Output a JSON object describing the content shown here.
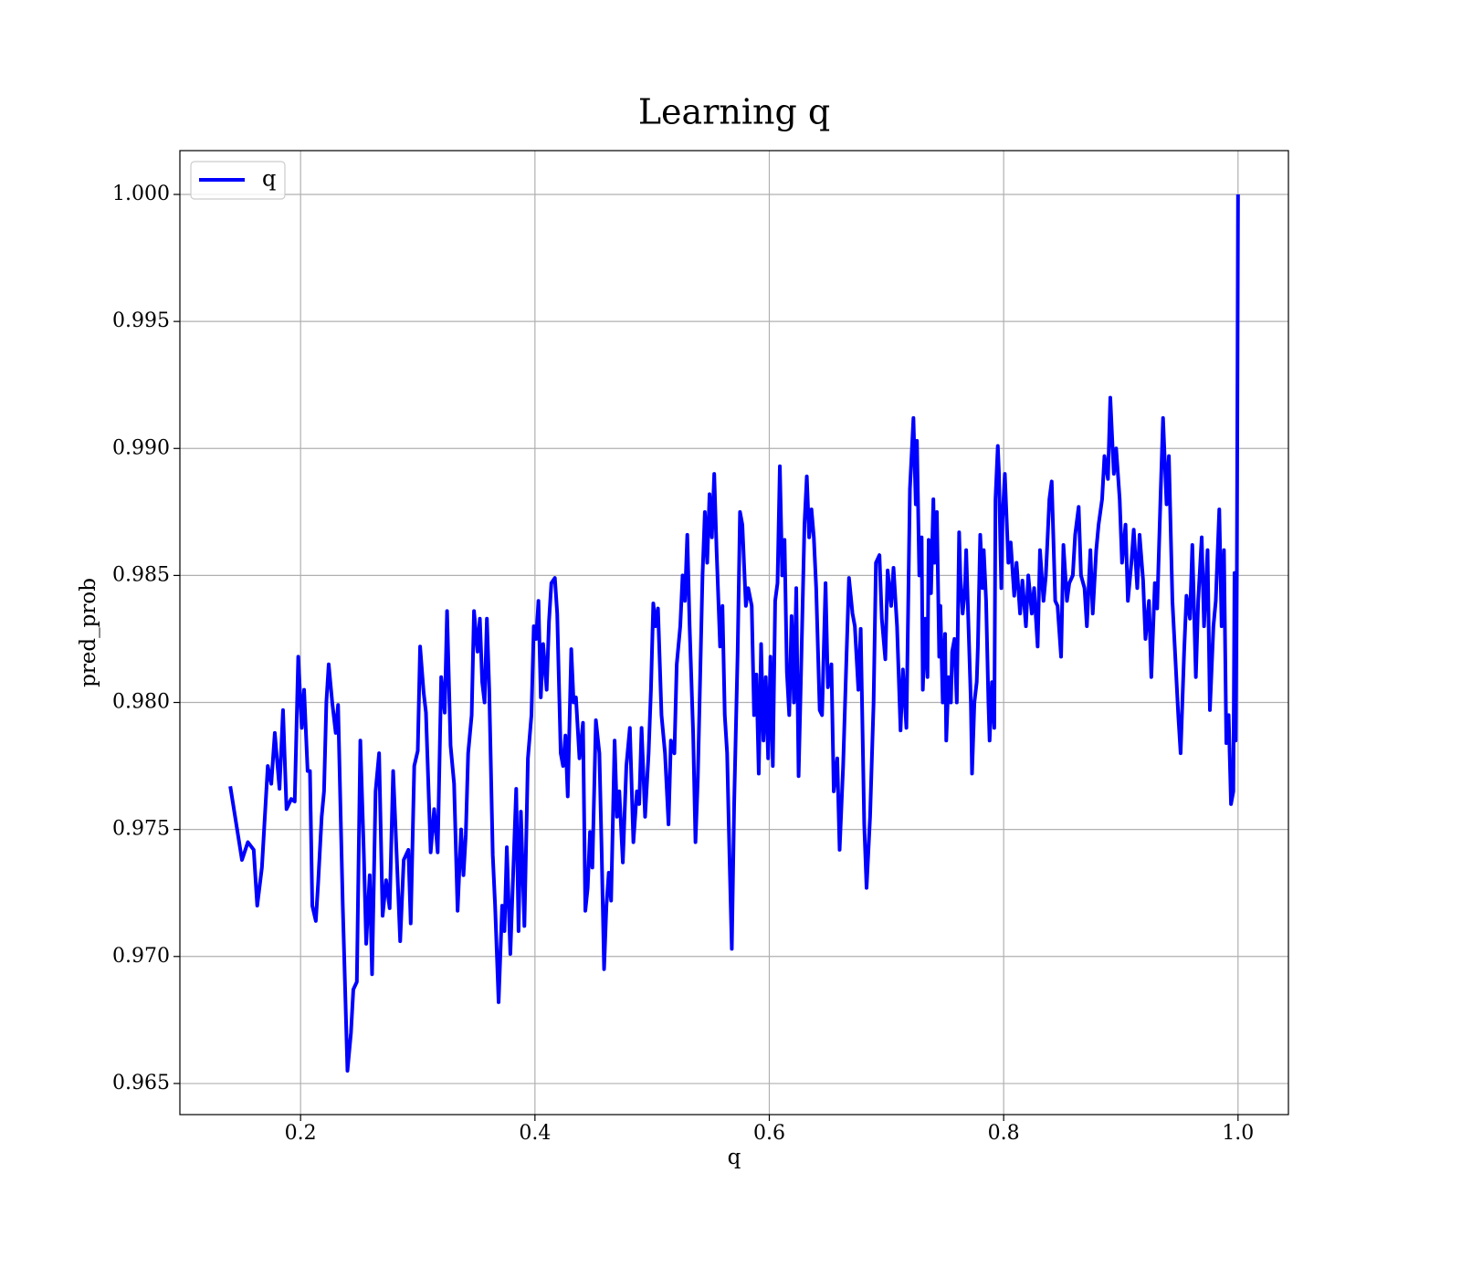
{
  "chart_data": {
    "type": "line",
    "title": "Learning q",
    "xlabel": "q",
    "ylabel": "pred_prob",
    "x": [
      0.14,
      0.15,
      0.155,
      0.16,
      0.163,
      0.167,
      0.172,
      0.175,
      0.178,
      0.182,
      0.185,
      0.188,
      0.192,
      0.195,
      0.198,
      0.201,
      0.203,
      0.206,
      0.208,
      0.21,
      0.213,
      0.215,
      0.218,
      0.22,
      0.222,
      0.224,
      0.227,
      0.23,
      0.232,
      0.236,
      0.24,
      0.243,
      0.245,
      0.248,
      0.251,
      0.254,
      0.256,
      0.259,
      0.261,
      0.264,
      0.267,
      0.27,
      0.273,
      0.276,
      0.279,
      0.282,
      0.285,
      0.288,
      0.292,
      0.294,
      0.297,
      0.3,
      0.302,
      0.305,
      0.307,
      0.311,
      0.314,
      0.317,
      0.32,
      0.323,
      0.325,
      0.328,
      0.331,
      0.334,
      0.337,
      0.339,
      0.341,
      0.343,
      0.346,
      0.348,
      0.351,
      0.353,
      0.355,
      0.357,
      0.359,
      0.361,
      0.364,
      0.366,
      0.369,
      0.372,
      0.374,
      0.376,
      0.379,
      0.382,
      0.384,
      0.386,
      0.388,
      0.391,
      0.394,
      0.397,
      0.399,
      0.401,
      0.403,
      0.405,
      0.407,
      0.41,
      0.412,
      0.414,
      0.417,
      0.419,
      0.422,
      0.424,
      0.426,
      0.428,
      0.431,
      0.433,
      0.435,
      0.438,
      0.441,
      0.443,
      0.445,
      0.447,
      0.449,
      0.452,
      0.455,
      0.457,
      0.459,
      0.461,
      0.463,
      0.465,
      0.468,
      0.47,
      0.472,
      0.475,
      0.478,
      0.481,
      0.484,
      0.487,
      0.489,
      0.491,
      0.494,
      0.497,
      0.499,
      0.501,
      0.503,
      0.505,
      0.508,
      0.511,
      0.514,
      0.516,
      0.519,
      0.521,
      0.524,
      0.526,
      0.528,
      0.53,
      0.532,
      0.535,
      0.537,
      0.539,
      0.541,
      0.543,
      0.545,
      0.547,
      0.549,
      0.551,
      0.553,
      0.555,
      0.558,
      0.56,
      0.562,
      0.564,
      0.566,
      0.568,
      0.57,
      0.573,
      0.575,
      0.577,
      0.58,
      0.582,
      0.585,
      0.587,
      0.589,
      0.591,
      0.593,
      0.595,
      0.597,
      0.599,
      0.601,
      0.603,
      0.605,
      0.607,
      0.609,
      0.611,
      0.613,
      0.615,
      0.617,
      0.619,
      0.621,
      0.623,
      0.625,
      0.627,
      0.63,
      0.632,
      0.634,
      0.636,
      0.638,
      0.64,
      0.643,
      0.645,
      0.648,
      0.65,
      0.653,
      0.655,
      0.658,
      0.66,
      0.663,
      0.666,
      0.668,
      0.671,
      0.673,
      0.676,
      0.678,
      0.681,
      0.683,
      0.686,
      0.689,
      0.691,
      0.694,
      0.696,
      0.699,
      0.701,
      0.704,
      0.706,
      0.709,
      0.712,
      0.714,
      0.717,
      0.72,
      0.723,
      0.725,
      0.726,
      0.728,
      0.73,
      0.731,
      0.733,
      0.735,
      0.736,
      0.738,
      0.74,
      0.741,
      0.743,
      0.745,
      0.746,
      0.748,
      0.75,
      0.751,
      0.753,
      0.755,
      0.756,
      0.758,
      0.76,
      0.762,
      0.763,
      0.765,
      0.767,
      0.768,
      0.77,
      0.772,
      0.773,
      0.775,
      0.777,
      0.778,
      0.78,
      0.782,
      0.783,
      0.785,
      0.787,
      0.788,
      0.79,
      0.792,
      0.793,
      0.795,
      0.796,
      0.797,
      0.798,
      0.799,
      0.801,
      0.804,
      0.806,
      0.809,
      0.811,
      0.814,
      0.816,
      0.819,
      0.821,
      0.824,
      0.826,
      0.829,
      0.831,
      0.834,
      0.836,
      0.839,
      0.841,
      0.844,
      0.846,
      0.849,
      0.851,
      0.854,
      0.856,
      0.859,
      0.861,
      0.864,
      0.866,
      0.869,
      0.871,
      0.874,
      0.876,
      0.879,
      0.881,
      0.884,
      0.886,
      0.889,
      0.891,
      0.894,
      0.896,
      0.899,
      0.901,
      0.904,
      0.906,
      0.909,
      0.911,
      0.914,
      0.916,
      0.919,
      0.921,
      0.924,
      0.926,
      0.929,
      0.931,
      0.934,
      0.936,
      0.939,
      0.941,
      0.944,
      0.946,
      0.949,
      0.951,
      0.954,
      0.956,
      0.959,
      0.961,
      0.964,
      0.966,
      0.969,
      0.971,
      0.974,
      0.976,
      0.979,
      0.981,
      0.984,
      0.986,
      0.988,
      0.99,
      0.992,
      0.994,
      0.996,
      0.997,
      0.998,
      0.999,
      1.0
    ],
    "series": [
      {
        "name": "q",
        "color": "#0000ff",
        "values": [
          0.9767,
          0.9738,
          0.9745,
          0.9742,
          0.972,
          0.9735,
          0.9775,
          0.9768,
          0.9788,
          0.9766,
          0.9797,
          0.9758,
          0.9762,
          0.9761,
          0.9818,
          0.979,
          0.9805,
          0.9773,
          0.9773,
          0.972,
          0.9714,
          0.9729,
          0.9755,
          0.9765,
          0.98,
          0.9815,
          0.98,
          0.9788,
          0.9799,
          0.972,
          0.9655,
          0.967,
          0.9687,
          0.969,
          0.9785,
          0.974,
          0.9705,
          0.9732,
          0.9693,
          0.9765,
          0.978,
          0.9716,
          0.973,
          0.9719,
          0.9773,
          0.974,
          0.9706,
          0.9738,
          0.9742,
          0.9713,
          0.9775,
          0.9781,
          0.9822,
          0.9804,
          0.9796,
          0.9741,
          0.9758,
          0.9741,
          0.981,
          0.9796,
          0.9836,
          0.9783,
          0.9768,
          0.9718,
          0.975,
          0.9732,
          0.9748,
          0.978,
          0.9795,
          0.9836,
          0.982,
          0.9833,
          0.9808,
          0.98,
          0.9833,
          0.9805,
          0.974,
          0.972,
          0.9682,
          0.972,
          0.971,
          0.9743,
          0.9701,
          0.974,
          0.9766,
          0.971,
          0.9757,
          0.9712,
          0.9778,
          0.9795,
          0.983,
          0.9825,
          0.984,
          0.9802,
          0.9823,
          0.9805,
          0.9832,
          0.9847,
          0.9849,
          0.9835,
          0.978,
          0.9775,
          0.9787,
          0.9763,
          0.9821,
          0.98,
          0.9802,
          0.9778,
          0.9792,
          0.9718,
          0.9727,
          0.9749,
          0.9735,
          0.9793,
          0.978,
          0.974,
          0.9695,
          0.972,
          0.9733,
          0.9722,
          0.9785,
          0.9755,
          0.9765,
          0.9737,
          0.9775,
          0.979,
          0.9745,
          0.9765,
          0.976,
          0.979,
          0.9755,
          0.978,
          0.9805,
          0.9839,
          0.983,
          0.9837,
          0.9795,
          0.978,
          0.9752,
          0.9785,
          0.978,
          0.9815,
          0.983,
          0.985,
          0.984,
          0.9866,
          0.983,
          0.9788,
          0.9745,
          0.977,
          0.981,
          0.985,
          0.9875,
          0.9855,
          0.9882,
          0.9865,
          0.989,
          0.986,
          0.9822,
          0.9838,
          0.9795,
          0.978,
          0.974,
          0.9703,
          0.976,
          0.982,
          0.9875,
          0.987,
          0.9838,
          0.9845,
          0.9838,
          0.9795,
          0.9811,
          0.9772,
          0.9823,
          0.9785,
          0.981,
          0.9778,
          0.9818,
          0.9775,
          0.984,
          0.9847,
          0.9893,
          0.985,
          0.9864,
          0.9812,
          0.9795,
          0.9834,
          0.98,
          0.9845,
          0.9771,
          0.981,
          0.987,
          0.9889,
          0.9865,
          0.9876,
          0.9865,
          0.9845,
          0.9797,
          0.9795,
          0.9847,
          0.9806,
          0.9815,
          0.9765,
          0.9778,
          0.9742,
          0.9775,
          0.982,
          0.9849,
          0.9835,
          0.983,
          0.9805,
          0.9829,
          0.9752,
          0.9727,
          0.9755,
          0.98,
          0.9855,
          0.9858,
          0.9833,
          0.9817,
          0.9852,
          0.9838,
          0.9853,
          0.983,
          0.9789,
          0.9813,
          0.979,
          0.9884,
          0.9912,
          0.9878,
          0.9903,
          0.985,
          0.9865,
          0.9805,
          0.9833,
          0.981,
          0.9864,
          0.9843,
          0.988,
          0.9855,
          0.9875,
          0.9818,
          0.9838,
          0.98,
          0.9827,
          0.9785,
          0.981,
          0.98,
          0.982,
          0.9825,
          0.98,
          0.9867,
          0.985,
          0.9835,
          0.9845,
          0.986,
          0.983,
          0.98,
          0.9772,
          0.98,
          0.9808,
          0.9822,
          0.9866,
          0.9845,
          0.986,
          0.984,
          0.98,
          0.9785,
          0.9808,
          0.979,
          0.988,
          0.9901,
          0.989,
          0.9866,
          0.9845,
          0.9872,
          0.989,
          0.9855,
          0.9863,
          0.9842,
          0.9855,
          0.9835,
          0.9848,
          0.983,
          0.985,
          0.9835,
          0.9845,
          0.9822,
          0.986,
          0.984,
          0.985,
          0.988,
          0.9887,
          0.984,
          0.9838,
          0.9818,
          0.9862,
          0.984,
          0.9847,
          0.985,
          0.9866,
          0.9877,
          0.985,
          0.9845,
          0.983,
          0.986,
          0.9835,
          0.986,
          0.987,
          0.988,
          0.9897,
          0.9888,
          0.992,
          0.989,
          0.99,
          0.988,
          0.9855,
          0.987,
          0.984,
          0.9855,
          0.9868,
          0.9845,
          0.9866,
          0.9848,
          0.9825,
          0.984,
          0.981,
          0.9847,
          0.9837,
          0.9883,
          0.9912,
          0.9878,
          0.9897,
          0.984,
          0.9822,
          0.9795,
          0.978,
          0.982,
          0.9842,
          0.9833,
          0.9862,
          0.981,
          0.984,
          0.9865,
          0.983,
          0.986,
          0.9797,
          0.983,
          0.984,
          0.9876,
          0.983,
          0.986,
          0.9784,
          0.9795,
          0.976,
          0.9765,
          0.9851,
          0.9785,
          0.985,
          1.0
        ]
      }
    ],
    "xlim": [
      0.097,
      1.043
    ],
    "ylim": [
      0.963775,
      1.001725
    ],
    "xticks": [
      0.2,
      0.4,
      0.6,
      0.8,
      {
        "value": 1,
        "label": "1.0"
      }
    ],
    "yticks": [
      0.965,
      {
        "value": 0.97,
        "label": "0.970"
      },
      0.975,
      {
        "value": 0.98,
        "label": "0.980"
      },
      0.985,
      {
        "value": 0.99,
        "label": "0.990"
      },
      0.995,
      {
        "value": 1,
        "label": "1.000"
      }
    ],
    "grid": true,
    "legend": "upper left"
  }
}
